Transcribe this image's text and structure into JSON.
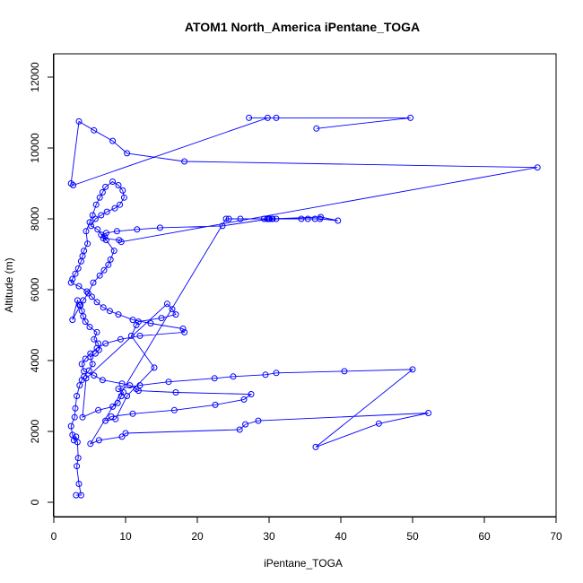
{
  "chart_data": {
    "type": "line",
    "title": "ATOM1 North_America iPentane_TOGA",
    "xlabel": "iPentane_TOGA",
    "ylabel": "Altitude (m)",
    "xlim": [
      0,
      70
    ],
    "ylim": [
      0,
      12000
    ],
    "xticks": [
      "0",
      "10",
      "20",
      "30",
      "40",
      "50",
      "60",
      "70"
    ],
    "yticks": [
      "0",
      "2000",
      "4000",
      "6000",
      "8000",
      "10000",
      "12000"
    ],
    "grid": false,
    "legend": "none",
    "markers": "open-circle",
    "color": "#0000ff",
    "series": [
      {
        "x": [
          3.1,
          3.8,
          3.5,
          3.2,
          3.4,
          3.3,
          3.1,
          2.8,
          2.6,
          2.4,
          2.9,
          3.0,
          3.2,
          3.6,
          3.9,
          4.2,
          4.9,
          5.4,
          5.1,
          5.8,
          6.3,
          6.2,
          5.6,
          6.0,
          5.0,
          4.4,
          4.1,
          3.9,
          3.6,
          3.3,
          2.6,
          3.7,
          4.1,
          4.8,
          5.5,
          6.4,
          7.0,
          7.6,
          7.9,
          8.4,
          7.3,
          6.1,
          5.2,
          5.8,
          6.6,
          7.4,
          8.5,
          9.2,
          9.8,
          9.6,
          9.0,
          8.2,
          7.2,
          6.8,
          6.4,
          5.9,
          5.4,
          5.0,
          4.5,
          4.7,
          4.2,
          4.0,
          3.8,
          3.4,
          3.0,
          2.6,
          2.4,
          3.5,
          4.6,
          5.3,
          6.0,
          6.9,
          7.8,
          9.0,
          11.0,
          13.5,
          18.0,
          18.2,
          12.0,
          9.3,
          7.2,
          6.0,
          5.1,
          4.4,
          3.9,
          4.2,
          5.6,
          6.8,
          9.5,
          10.6,
          11.5,
          11.8,
          17.0,
          27.5,
          26.5,
          22.5,
          16.8,
          11.0,
          8.0,
          7.2,
          8.6,
          10.2,
          14.0,
          10.8,
          11.5,
          11.8,
          15.0,
          17.0,
          16.5,
          15.8,
          4.5,
          4.0,
          6.2,
          8.2,
          8.9,
          9.4,
          9.7,
          9.0,
          12.0,
          16.0,
          22.4,
          25.0,
          29.5,
          31.0,
          40.5,
          50.0,
          36.5,
          45.3,
          52.2,
          28.5,
          26.7,
          25.9,
          10.0,
          9.5,
          6.3,
          5.1,
          24.0,
          24.4,
          26.0,
          29.3,
          30.0,
          30.5,
          31.0,
          34.5,
          35.4,
          36.4,
          37.1,
          39.6,
          37.2,
          30.4,
          29.7,
          29.9,
          30.1,
          23.5,
          14.8,
          11.6,
          8.8,
          7.3,
          6.6,
          7.1,
          6.9,
          9.1,
          9.4,
          67.4,
          18.2,
          10.2,
          8.2,
          5.6,
          3.5,
          2.4,
          2.7,
          29.8,
          27.2,
          31.0,
          49.7,
          36.6
        ],
        "y": [
          200,
          200,
          520,
          1020,
          1250,
          1700,
          1850,
          1750,
          1900,
          2150,
          2400,
          2650,
          3000,
          3300,
          3450,
          3550,
          3720,
          3900,
          4100,
          4200,
          4300,
          4480,
          4600,
          4800,
          4950,
          5100,
          5250,
          5400,
          5560,
          5700,
          5150,
          5560,
          5700,
          5900,
          6200,
          6400,
          6550,
          6700,
          6850,
          7100,
          7400,
          7700,
          7800,
          8000,
          8100,
          8200,
          8300,
          8400,
          8600,
          8800,
          8950,
          9050,
          8900,
          8750,
          8600,
          8400,
          8100,
          7900,
          7650,
          7300,
          7100,
          6950,
          6800,
          6600,
          6450,
          6300,
          6200,
          6100,
          5950,
          5800,
          5650,
          5500,
          5400,
          5300,
          5150,
          5050,
          4900,
          4800,
          4700,
          4600,
          4480,
          4350,
          4200,
          4050,
          3900,
          3700,
          3580,
          3450,
          3350,
          3300,
          3200,
          3150,
          3100,
          3050,
          2900,
          2750,
          2600,
          2500,
          2420,
          2300,
          2350,
          3000,
          3800,
          4700,
          5000,
          5100,
          5200,
          5300,
          5450,
          5600,
          3500,
          2400,
          2600,
          2700,
          2800,
          3000,
          3100,
          3200,
          3300,
          3400,
          3500,
          3550,
          3600,
          3650,
          3700,
          3750,
          1560,
          2220,
          2520,
          2300,
          2200,
          2050,
          1950,
          1850,
          1750,
          1650,
          8000,
          8000,
          8000,
          8000,
          8000,
          8000,
          8000,
          8000,
          8000,
          8000,
          8000,
          7950,
          8050,
          8000,
          8000,
          8000,
          8000,
          7800,
          7750,
          7700,
          7650,
          7600,
          7550,
          7500,
          7450,
          7400,
          7350,
          9450,
          9620,
          9850,
          10200,
          10500,
          10750,
          9000,
          8950,
          10850,
          10850,
          10850,
          10850,
          10550
        ]
      }
    ]
  }
}
